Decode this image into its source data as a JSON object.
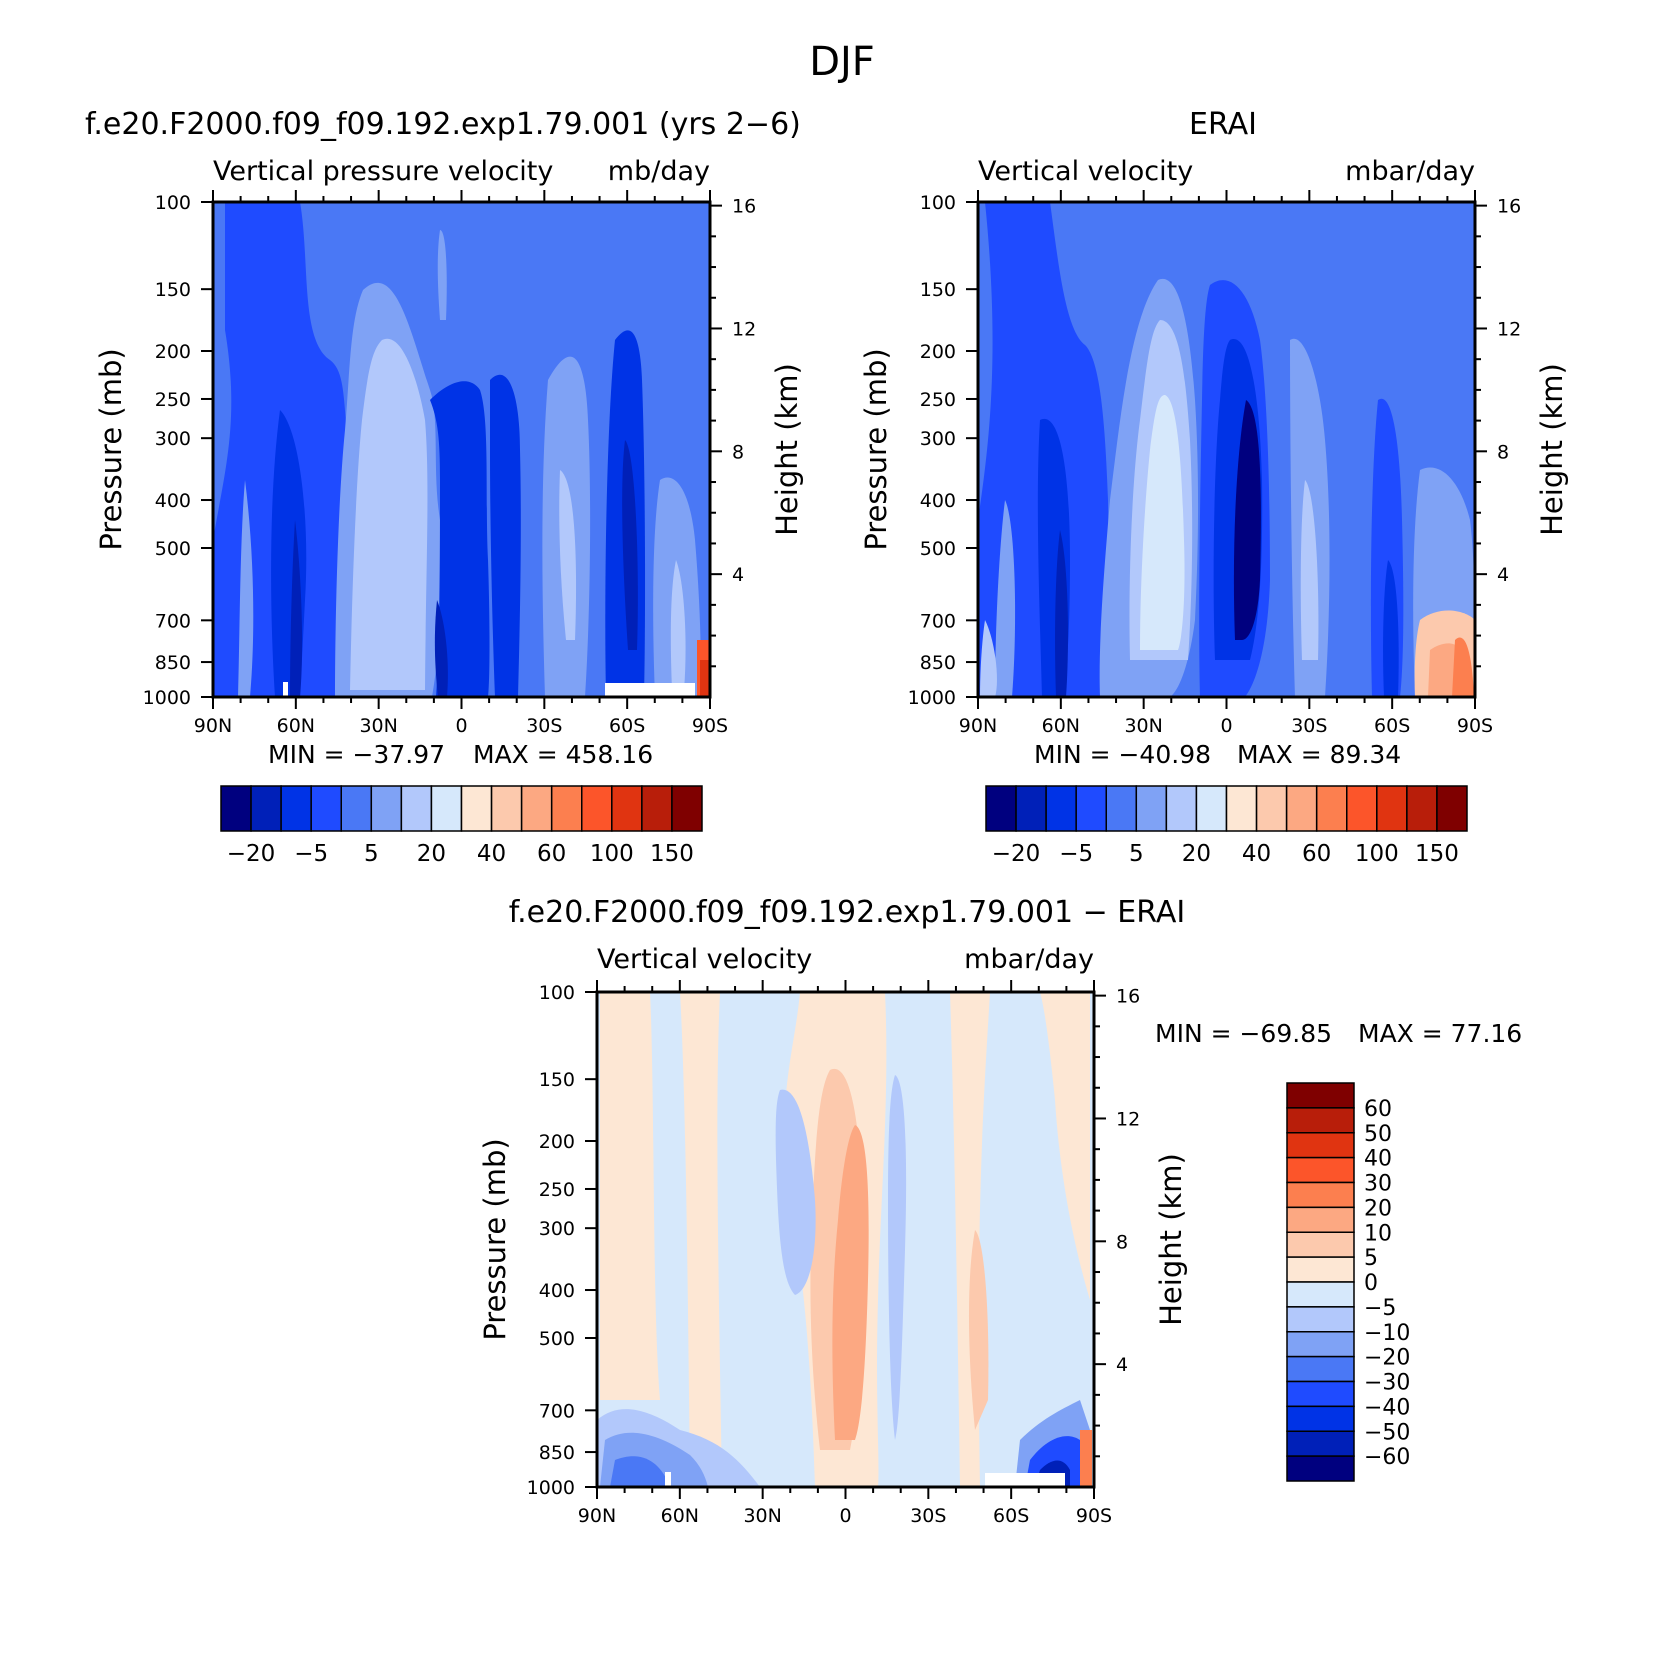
{
  "figure": {
    "title": "DJF"
  },
  "chart_data": [
    {
      "type": "heatmap",
      "title": "f.e20.F2000.f09_f09.192.exp1.79.001 (yrs 2−6)",
      "subtitle_left": "Vertical pressure velocity",
      "subtitle_right": "mb/day",
      "ylabel": "Pressure (mb)",
      "ylabel_right": "Height (km)",
      "x_ticks": [
        "90N",
        "60N",
        "30N",
        "0",
        "30S",
        "60S",
        "90S"
      ],
      "x_tick_values": [
        90,
        60,
        30,
        0,
        -30,
        -60,
        -90
      ],
      "y_ticks": [
        "100",
        "150",
        "200",
        "250",
        "300",
        "400",
        "500",
        "700",
        "850",
        "1000"
      ],
      "y_tick_values": [
        100,
        150,
        200,
        250,
        300,
        400,
        500,
        700,
        850,
        1000
      ],
      "y_right_ticks": [
        "16",
        "12",
        "8",
        "4"
      ],
      "y_right_tick_values": [
        16,
        12,
        8,
        4
      ],
      "xlim": [
        90,
        -90
      ],
      "ylim": [
        1000,
        100
      ],
      "y_scale": "log",
      "min_label": "MIN = −37.97",
      "max_label": "MAX = 458.16",
      "min": -37.97,
      "max": 458.16,
      "colorbar": {
        "orientation": "horizontal",
        "colors": [
          "#00007f",
          "#0020b8",
          "#0033e6",
          "#1f4bff",
          "#4a78f5",
          "#7fa2f5",
          "#b2c8fb",
          "#d6e8fb",
          "#fde7d4",
          "#fcc9ad",
          "#fca882",
          "#fc7f4f",
          "#fc552a",
          "#e03411",
          "#b81e0a",
          "#7f0000"
        ],
        "labels": [
          "−20",
          "−5",
          "5",
          "20",
          "40",
          "60",
          "100",
          "150"
        ]
      }
    },
    {
      "type": "heatmap",
      "title": "ERAI",
      "subtitle_left": "Vertical velocity",
      "subtitle_right": "mbar/day",
      "ylabel": "Pressure (mb)",
      "ylabel_right": "Height (km)",
      "x_ticks": [
        "90N",
        "60N",
        "30N",
        "0",
        "30S",
        "60S",
        "90S"
      ],
      "x_tick_values": [
        90,
        60,
        30,
        0,
        -30,
        -60,
        -90
      ],
      "y_ticks": [
        "100",
        "150",
        "200",
        "250",
        "300",
        "400",
        "500",
        "700",
        "850",
        "1000"
      ],
      "y_tick_values": [
        100,
        150,
        200,
        250,
        300,
        400,
        500,
        700,
        850,
        1000
      ],
      "y_right_ticks": [
        "16",
        "12",
        "8",
        "4"
      ],
      "y_right_tick_values": [
        16,
        12,
        8,
        4
      ],
      "xlim": [
        90,
        -90
      ],
      "ylim": [
        1000,
        100
      ],
      "y_scale": "log",
      "min_label": "MIN = −40.98",
      "max_label": "MAX = 89.34",
      "min": -40.98,
      "max": 89.34,
      "colorbar": {
        "orientation": "horizontal",
        "colors": [
          "#00007f",
          "#0020b8",
          "#0033e6",
          "#1f4bff",
          "#4a78f5",
          "#7fa2f5",
          "#b2c8fb",
          "#d6e8fb",
          "#fde7d4",
          "#fcc9ad",
          "#fca882",
          "#fc7f4f",
          "#fc552a",
          "#e03411",
          "#b81e0a",
          "#7f0000"
        ],
        "labels": [
          "−20",
          "−5",
          "5",
          "20",
          "40",
          "60",
          "100",
          "150"
        ]
      }
    },
    {
      "type": "heatmap",
      "title": "f.e20.F2000.f09_f09.192.exp1.79.001 − ERAI",
      "subtitle_left": "Vertical velocity",
      "subtitle_right": "mbar/day",
      "ylabel": "Pressure (mb)",
      "ylabel_right": "Height (km)",
      "x_ticks": [
        "90N",
        "60N",
        "30N",
        "0",
        "30S",
        "60S",
        "90S"
      ],
      "x_tick_values": [
        90,
        60,
        30,
        0,
        -30,
        -60,
        -90
      ],
      "y_ticks": [
        "100",
        "150",
        "200",
        "250",
        "300",
        "400",
        "500",
        "700",
        "850",
        "1000"
      ],
      "y_tick_values": [
        100,
        150,
        200,
        250,
        300,
        400,
        500,
        700,
        850,
        1000
      ],
      "y_right_ticks": [
        "16",
        "12",
        "8",
        "4"
      ],
      "y_right_tick_values": [
        16,
        12,
        8,
        4
      ],
      "xlim": [
        90,
        -90
      ],
      "ylim": [
        1000,
        100
      ],
      "y_scale": "log",
      "min_label": "MIN = −69.85",
      "max_label": "MAX = 77.16",
      "min": -69.85,
      "max": 77.16,
      "colorbar": {
        "orientation": "vertical",
        "colors": [
          "#7f0000",
          "#b81e0a",
          "#e03411",
          "#fc552a",
          "#fc7f4f",
          "#fca882",
          "#fcc9ad",
          "#fde7d4",
          "#d6e8fb",
          "#b2c8fb",
          "#7fa2f5",
          "#4a78f5",
          "#1f4bff",
          "#0033e6",
          "#0020b8",
          "#00007f"
        ],
        "labels": [
          "60",
          "50",
          "40",
          "30",
          "20",
          "10",
          "5",
          "0",
          "−5",
          "−10",
          "−20",
          "−30",
          "−40",
          "−50",
          "−60"
        ]
      }
    }
  ]
}
